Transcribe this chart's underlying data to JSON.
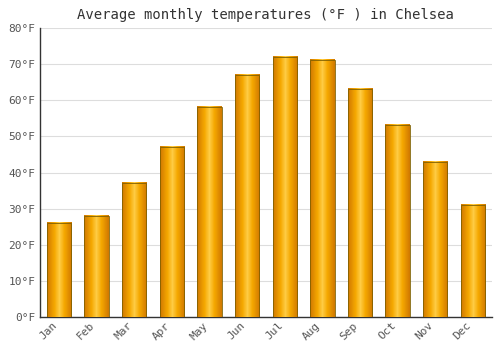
{
  "title": "Average monthly temperatures (°F ) in Chelsea",
  "months": [
    "Jan",
    "Feb",
    "Mar",
    "Apr",
    "May",
    "Jun",
    "Jul",
    "Aug",
    "Sep",
    "Oct",
    "Nov",
    "Dec"
  ],
  "values": [
    26,
    28,
    37,
    47,
    58,
    67,
    72,
    71,
    63,
    53,
    43,
    31
  ],
  "bar_color_center": "#FFBB33",
  "bar_color_edge": "#E08000",
  "bar_border_color": "#888800",
  "background_color": "#FFFFFF",
  "grid_color": "#DDDDDD",
  "ylim": [
    0,
    80
  ],
  "yticks": [
    0,
    10,
    20,
    30,
    40,
    50,
    60,
    70,
    80
  ],
  "ytick_labels": [
    "0°F",
    "10°F",
    "20°F",
    "30°F",
    "40°F",
    "50°F",
    "60°F",
    "70°F",
    "80°F"
  ],
  "title_fontsize": 10,
  "tick_fontsize": 8,
  "tick_color": "#555555",
  "spine_color": "#333333"
}
